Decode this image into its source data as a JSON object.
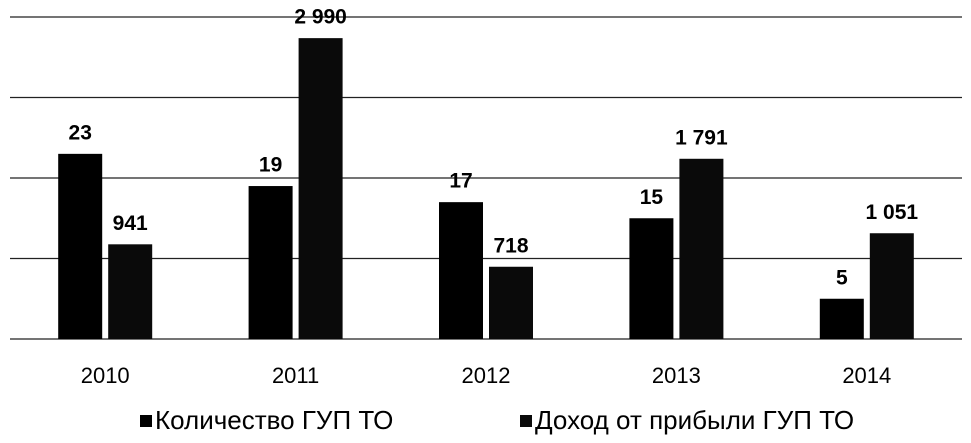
{
  "chart_data": {
    "type": "bar",
    "categories": [
      "2010",
      "2011",
      "2012",
      "2013",
      "2014"
    ],
    "series": [
      {
        "name": "Количество ГУП ТО",
        "color": "#000000",
        "values": [
          23,
          19,
          17,
          15,
          5
        ]
      },
      {
        "name": "Доход от прибыли ГУП ТО",
        "color": "#0a0a0a",
        "axis": "y2",
        "values": [
          941,
          2990,
          718,
          1791,
          1051
        ],
        "value_labels": [
          "941",
          "2 990",
          "718",
          "1 791",
          "1 051"
        ]
      }
    ],
    "ylim": [
      0,
      40
    ],
    "yticks": [
      0,
      10,
      20,
      30,
      40
    ],
    "y2lim": [
      0,
      3200
    ],
    "y2ticks": [
      0,
      800,
      1600,
      2400,
      3200
    ],
    "grid": true,
    "legend": "bottom"
  }
}
